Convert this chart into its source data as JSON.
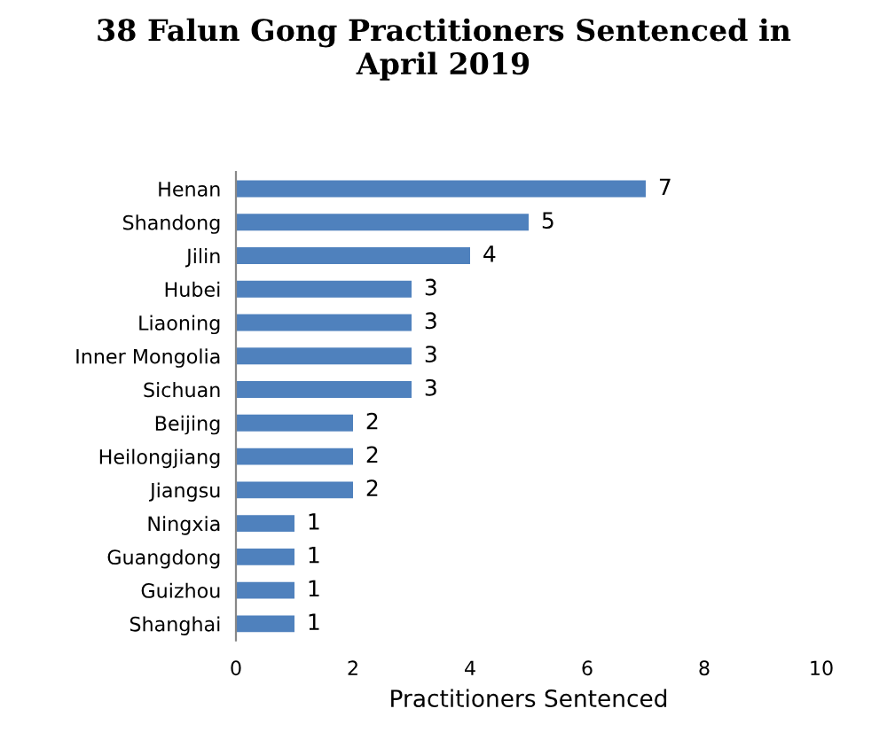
{
  "chart_data": {
    "type": "bar",
    "orientation": "horizontal",
    "title": "38 Falun Gong Practitioners Sentenced in\nApril 2019",
    "xlabel": "Practitioners Sentenced",
    "categories": [
      "Henan",
      "Shandong",
      "Jilin",
      "Hubei",
      "Liaoning",
      "Inner Mongolia",
      "Sichuan",
      "Beijing",
      "Heilongjiang",
      "Jiangsu",
      "Ningxia",
      "Guangdong",
      "Guizhou",
      "Shanghai"
    ],
    "values": [
      7,
      5,
      4,
      3,
      3,
      3,
      3,
      2,
      2,
      2,
      1,
      1,
      1,
      1
    ],
    "color": "#4f81bd",
    "xlim": [
      0,
      10
    ],
    "xticks": [
      0,
      2,
      4,
      6,
      8,
      10
    ],
    "grid": false,
    "legend": false,
    "data_labels": true
  }
}
